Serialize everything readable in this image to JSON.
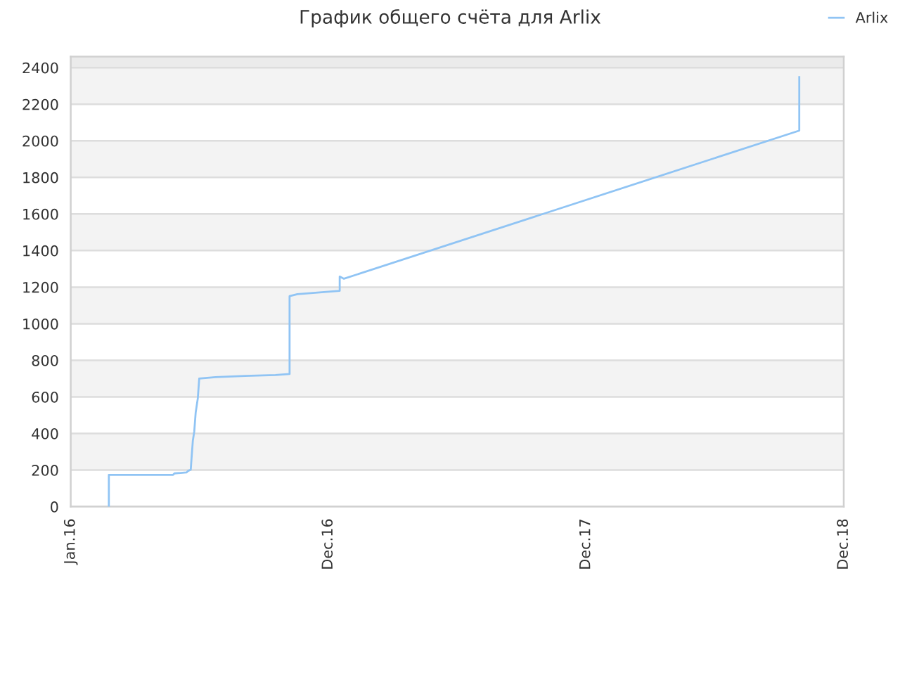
{
  "chart_data": {
    "type": "line",
    "title": "График общего счёта для Arlix",
    "x": [
      "2016-02-24",
      "2016-02-24",
      "2016-05-25",
      "2016-05-27",
      "2016-06-13",
      "2016-06-15",
      "2016-06-19",
      "2016-06-20",
      "2016-06-22",
      "2016-06-24",
      "2016-06-26",
      "2016-06-29",
      "2016-07-01",
      "2016-07-24",
      "2016-09-04",
      "2016-10-17",
      "2016-11-06",
      "2016-11-06",
      "2016-11-17",
      "2017-01-16",
      "2017-01-16",
      "2017-01-22",
      "2018-10-29",
      "2018-10-29"
    ],
    "series": [
      {
        "name": "Arlix",
        "color": "#90c4f4",
        "values": [
          0,
          174,
          174,
          182,
          187,
          195,
          202,
          258,
          362,
          412,
          515,
          592,
          700,
          708,
          715,
          720,
          725,
          1151,
          1162,
          1180,
          1258,
          1246,
          2056,
          2348
        ]
      }
    ],
    "xlim": [
      "2016-01-01",
      "2018-12-31"
    ],
    "xticks": [
      {
        "value": "2016-01-01",
        "label": "Jan.16"
      },
      {
        "value": "2016-12-31",
        "label": "Dec.16"
      },
      {
        "value": "2017-12-31",
        "label": "Dec.17"
      },
      {
        "value": "2018-12-31",
        "label": "Dec.18"
      }
    ],
    "ylim": [
      0,
      2460
    ],
    "yticks": [
      0,
      200,
      400,
      600,
      800,
      1000,
      1200,
      1400,
      1600,
      1800,
      2000,
      2200,
      2400
    ],
    "bands": [
      {
        "axis": "y",
        "from": 2400,
        "to": 2460,
        "color": "#ebebeb"
      }
    ],
    "grid": "y",
    "legend": "top right",
    "marker": "none",
    "line_style": "solid"
  }
}
